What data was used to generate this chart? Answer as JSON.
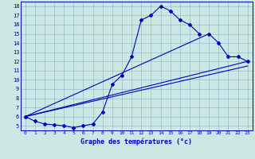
{
  "xlabel": "Graphe des températures (°c)",
  "bg_color": "#cce8e4",
  "line_color": "#0000bb",
  "grid_color": "#99bbcc",
  "axis_label_color": "#0000bb",
  "xmin": 0,
  "xmax": 23,
  "ymin": 5,
  "ymax": 18,
  "xticks": [
    0,
    1,
    2,
    3,
    4,
    5,
    6,
    7,
    8,
    9,
    10,
    11,
    12,
    13,
    14,
    15,
    16,
    17,
    18,
    19,
    20,
    21,
    22,
    23
  ],
  "yticks": [
    5,
    6,
    7,
    8,
    9,
    10,
    11,
    12,
    13,
    14,
    15,
    16,
    17,
    18
  ],
  "curve1_x": [
    0,
    1,
    2,
    3,
    4,
    5,
    6,
    7,
    8,
    9,
    10,
    11,
    12,
    13,
    14,
    15,
    16,
    17,
    18
  ],
  "curve1_y": [
    6.0,
    5.5,
    5.2,
    5.1,
    5.0,
    4.8,
    5.0,
    5.2,
    6.5,
    9.5,
    10.5,
    12.5,
    16.5,
    17.0,
    18.0,
    17.5,
    16.5,
    16.0,
    15.0
  ],
  "curve2_x": [
    0,
    19,
    20,
    21,
    22,
    23
  ],
  "curve2_y": [
    6.0,
    15.0,
    14.0,
    12.5,
    12.5,
    12.0
  ],
  "line_x": [
    0,
    23
  ],
  "line_y": [
    6.0,
    12.0
  ],
  "line2_x": [
    0,
    23
  ],
  "line2_y": [
    6.0,
    11.5
  ]
}
